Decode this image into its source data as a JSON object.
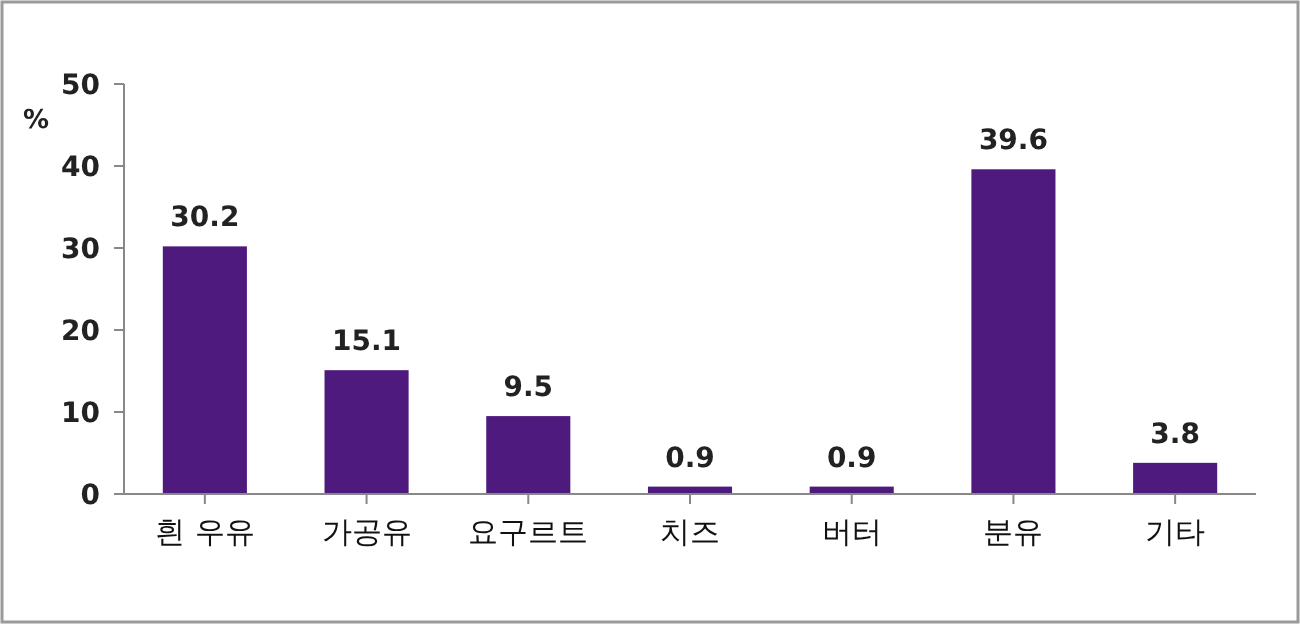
{
  "chart_data": {
    "type": "bar",
    "ylabel": "%",
    "categories": [
      "흰 우유",
      "가공유",
      "요구르트",
      "치즈",
      "버터",
      "분유",
      "기타"
    ],
    "values": [
      30.2,
      15.1,
      9.5,
      0.9,
      0.9,
      39.6,
      3.8
    ],
    "color": "#4e1a7e",
    "ylim": [
      0,
      50
    ],
    "yticks": [
      0,
      10,
      20,
      30,
      40,
      50
    ],
    "data_labels": true,
    "grid": false
  }
}
